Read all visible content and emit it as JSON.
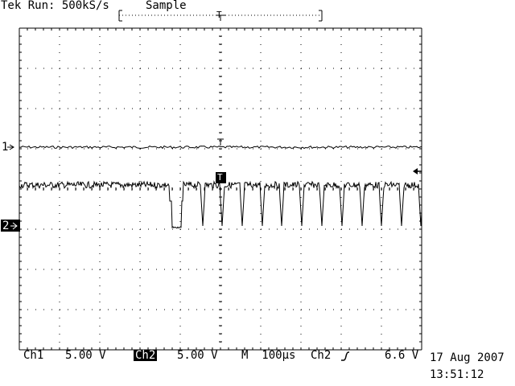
{
  "header": {
    "status": "Tek Run: 500kS/s",
    "acq_mode": "Sample"
  },
  "markers": {
    "ch1": "1",
    "ch2": "2",
    "trigger_point": "T",
    "trigger_level_icon": "left-arrow-icon"
  },
  "footer": {
    "ch1_label": "Ch1",
    "ch1_scale": "5.00 V",
    "ch2_label": "Ch2",
    "ch2_scale": "5.00 V",
    "timebase": "M  100µs",
    "trigger_source": "Ch2",
    "trigger_slope_icon": "rising-edge-icon",
    "trigger_level": "6.6 V",
    "date": "17 Aug 2007",
    "time": "13:51:12"
  },
  "colors": {
    "background": "#ffffff",
    "trace": "#000000",
    "grid": "#000000"
  }
}
